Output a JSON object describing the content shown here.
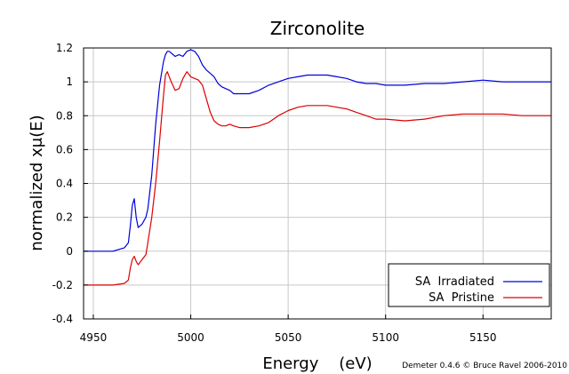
{
  "chart_data": {
    "type": "line",
    "title": "Zirconolite",
    "xlabel": "Energy    (eV)",
    "ylabel": "normalized xμ(E)",
    "xlim": [
      4945,
      5185
    ],
    "ylim": [
      -0.4,
      1.2
    ],
    "xticks": [
      4950,
      5000,
      5050,
      5100,
      5150
    ],
    "yticks": [
      -0.4,
      -0.2,
      0,
      0.2,
      0.4,
      0.6,
      0.8,
      1,
      1.2
    ],
    "xtick_labels": [
      "4950",
      "5000",
      "5050",
      "5100",
      "5150"
    ],
    "ytick_labels": [
      "-0.4",
      "-0.2",
      "0",
      "0.2",
      "0.4",
      "0.6",
      "0.8",
      "1",
      "1.2"
    ],
    "grid": true,
    "legend_position": "bottom-right",
    "credit": "Demeter 0.4.6 © Bruce Ravel 2006-2010",
    "series": [
      {
        "name": "SA  Irradiated",
        "color": "#0000dd",
        "x": [
          4945,
          4960,
          4966,
          4968,
          4969,
          4970,
          4971,
          4972,
          4973,
          4975,
          4977,
          4978,
          4980,
          4982,
          4984,
          4986,
          4987,
          4988,
          4989,
          4990,
          4992,
          4994,
          4996,
          4998,
          5000,
          5002,
          5004,
          5006,
          5008,
          5010,
          5012,
          5014,
          5016,
          5018,
          5020,
          5022,
          5025,
          5030,
          5035,
          5040,
          5045,
          5050,
          5055,
          5060,
          5065,
          5070,
          5075,
          5080,
          5085,
          5090,
          5095,
          5100,
          5110,
          5120,
          5130,
          5140,
          5150,
          5160,
          5170,
          5185
        ],
        "y": [
          0.0,
          0.0,
          0.02,
          0.05,
          0.15,
          0.27,
          0.31,
          0.2,
          0.14,
          0.16,
          0.2,
          0.25,
          0.45,
          0.75,
          0.98,
          1.12,
          1.16,
          1.18,
          1.18,
          1.17,
          1.15,
          1.16,
          1.15,
          1.18,
          1.19,
          1.18,
          1.15,
          1.1,
          1.07,
          1.05,
          1.03,
          0.99,
          0.97,
          0.96,
          0.95,
          0.93,
          0.93,
          0.93,
          0.95,
          0.98,
          1.0,
          1.02,
          1.03,
          1.04,
          1.04,
          1.04,
          1.03,
          1.02,
          1.0,
          0.99,
          0.99,
          0.98,
          0.98,
          0.99,
          0.99,
          1.0,
          1.01,
          1.0,
          1.0,
          1.0
        ]
      },
      {
        "name": "SA  Pristine",
        "color": "#dd0000",
        "x": [
          4945,
          4960,
          4966,
          4968,
          4969,
          4970,
          4971,
          4972,
          4973,
          4975,
          4977,
          4978,
          4980,
          4982,
          4984,
          4986,
          4987,
          4988,
          4990,
          4992,
          4994,
          4996,
          4998,
          5000,
          5002,
          5004,
          5006,
          5008,
          5010,
          5012,
          5014,
          5016,
          5018,
          5020,
          5022,
          5025,
          5030,
          5035,
          5040,
          5045,
          5050,
          5055,
          5060,
          5065,
          5070,
          5075,
          5080,
          5085,
          5090,
          5095,
          5100,
          5110,
          5120,
          5130,
          5140,
          5150,
          5160,
          5170,
          5185
        ],
        "y": [
          -0.2,
          -0.2,
          -0.19,
          -0.17,
          -0.1,
          -0.05,
          -0.03,
          -0.06,
          -0.08,
          -0.05,
          -0.02,
          0.05,
          0.2,
          0.4,
          0.65,
          0.92,
          1.04,
          1.06,
          1.0,
          0.95,
          0.96,
          1.02,
          1.06,
          1.03,
          1.02,
          1.01,
          0.98,
          0.9,
          0.82,
          0.77,
          0.75,
          0.74,
          0.74,
          0.75,
          0.74,
          0.73,
          0.73,
          0.74,
          0.76,
          0.8,
          0.83,
          0.85,
          0.86,
          0.86,
          0.86,
          0.85,
          0.84,
          0.82,
          0.8,
          0.78,
          0.78,
          0.77,
          0.78,
          0.8,
          0.81,
          0.81,
          0.81,
          0.8,
          0.8
        ]
      }
    ]
  }
}
